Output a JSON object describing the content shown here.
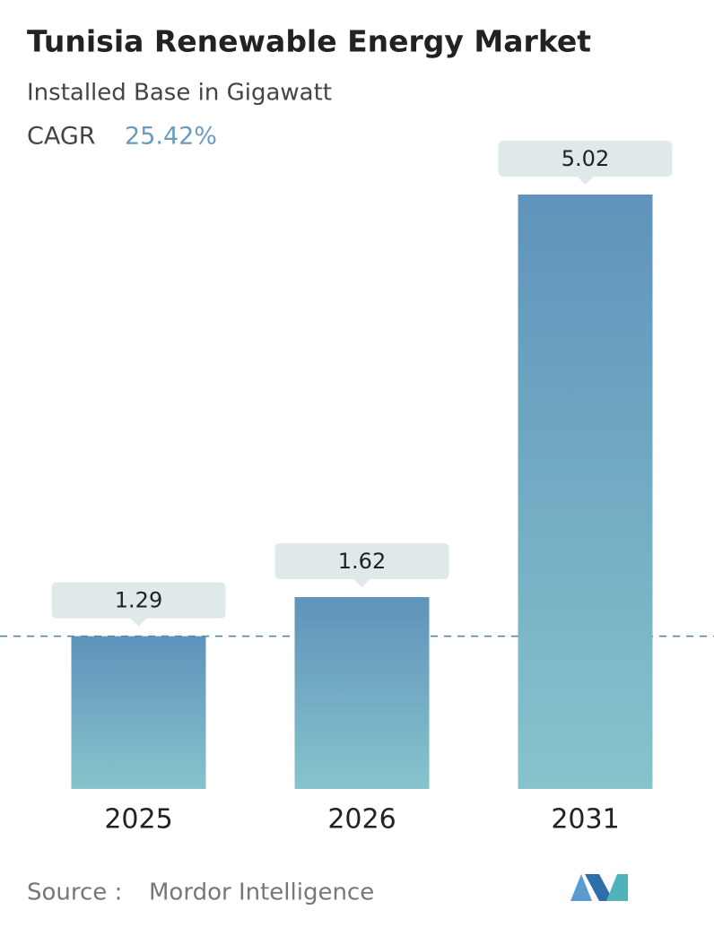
{
  "chart_data": {
    "type": "bar",
    "title": "Tunisia Renewable Energy Market",
    "subtitle": "Installed Base in Gigawatt",
    "cagr_label": "CAGR",
    "cagr": "25.42%",
    "categories": [
      "2025",
      "2026",
      "2031"
    ],
    "values": [
      1.29,
      1.62,
      5.02
    ],
    "color_top": "#5f93bb",
    "color_bottom": "#86c4cc",
    "source_label": "Source :",
    "source": "Mordor Intelligence"
  }
}
